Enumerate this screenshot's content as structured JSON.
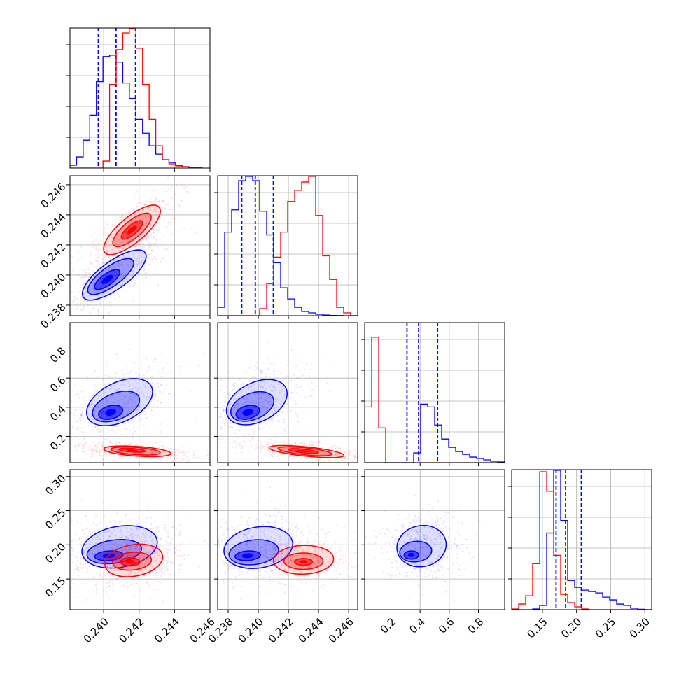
{
  "chart_data": {
    "type": "corner",
    "title": "",
    "parameters": [
      "",
      "",
      "",
      ""
    ],
    "colors": {
      "blue": "#0000ff",
      "red": "#ff0000",
      "grid": "#b0b0b0"
    },
    "grid": true,
    "axes": [
      {
        "range": [
          0.2381,
          0.246
        ],
        "ticks": [
          0.24,
          0.242,
          0.244,
          0.246
        ],
        "labels": [
          "0.240",
          "0.242",
          "0.244",
          "0.246"
        ]
      },
      {
        "range": [
          0.2373,
          0.2466
        ],
        "ticks": [
          0.238,
          0.24,
          0.242,
          0.244,
          0.246
        ],
        "labels": [
          "0.238",
          "0.240",
          "0.242",
          "0.244",
          "0.246"
        ]
      },
      {
        "range": [
          0.02,
          0.98
        ],
        "ticks": [
          0.2,
          0.4,
          0.6,
          0.8
        ],
        "labels": [
          "0.2",
          "0.4",
          "0.6",
          "0.8"
        ]
      },
      {
        "range": [
          0.105,
          0.31
        ],
        "ticks": [
          0.15,
          0.2,
          0.25,
          0.3
        ],
        "labels": [
          "0.15",
          "0.20",
          "0.25",
          "0.30"
        ]
      }
    ],
    "series": [
      {
        "color": "blue",
        "quantiles": [
          [
            0.2397,
            0.2407,
            0.2418
          ],
          [
            0.2389,
            0.2398,
            0.241
          ],
          [
            0.31,
            0.39,
            0.52
          ],
          [
            0.17,
            0.184,
            0.207
          ]
        ],
        "histograms": [
          {
            "edges": [
              0.2381,
              0.24555
            ],
            "counts": [
              2,
              8,
              20,
              38,
              62,
              80,
              81,
              76,
              61,
              50,
              35,
              25,
              16,
              10,
              6,
              4,
              2,
              1,
              0.5,
              0.3
            ]
          },
          {
            "edges": [
              0.2373,
              0.2466
            ],
            "counts": [
              6,
              60,
              76,
              97,
              100,
              97,
              75,
              58,
              38,
              20,
              12,
              6,
              3,
              2,
              1,
              0.4,
              0.2,
              0.1,
              0,
              0
            ]
          },
          {
            "edges": [
              0.02,
              0.98
            ],
            "counts": [
              0,
              0,
              0,
              0,
              0,
              0,
              0,
              7,
              42,
              40,
              27,
              17,
              11,
              8,
              6,
              4,
              3,
              2,
              1,
              0.5
            ]
          },
          {
            "edges": [
              0.105,
              0.31
            ],
            "counts": [
              0,
              0,
              0,
              0.5,
              3,
              55,
              100,
              64,
              21,
              16,
              14,
              13,
              12,
              9,
              7,
              4,
              3,
              1,
              0.3,
              0
            ]
          }
        ],
        "contours": {
          "1_0": [
            {
              "center": [
                0.2402,
                0.2397
              ],
              "sx": 0.00085,
              "sy": 0.00038,
              "angle": 36
            },
            {
              "center": [
                0.2404,
                0.2399
              ],
              "sx": 0.00155,
              "sy": 0.00065,
              "angle": 36
            },
            {
              "center": [
                0.2406,
                0.24
              ],
              "sx": 0.00215,
              "sy": 0.00092,
              "angle": 36
            }
          ],
          "2_0": [
            {
              "center": [
                0.2404,
                0.365
              ],
              "sx": 0.0007,
              "sy": 0.045,
              "angle": 14
            },
            {
              "center": [
                0.2407,
                0.405
              ],
              "sx": 0.0014,
              "sy": 0.09,
              "angle": 22
            },
            {
              "center": [
                0.2409,
                0.435
              ],
              "sx": 0.002,
              "sy": 0.135,
              "angle": 26
            }
          ],
          "2_1": [
            {
              "center": [
                0.2393,
                0.365
              ],
              "sx": 0.0008,
              "sy": 0.045,
              "angle": 14
            },
            {
              "center": [
                0.2396,
                0.405
              ],
              "sx": 0.0015,
              "sy": 0.09,
              "angle": 22
            },
            {
              "center": [
                0.2399,
                0.435
              ],
              "sx": 0.00215,
              "sy": 0.135,
              "angle": 26
            }
          ],
          "3_0": [
            {
              "center": [
                0.2403,
                0.184
              ],
              "sx": 0.0008,
              "sy": 0.007,
              "angle": 4
            },
            {
              "center": [
                0.2406,
                0.19
              ],
              "sx": 0.00155,
              "sy": 0.017,
              "angle": 8
            },
            {
              "center": [
                0.2409,
                0.197
              ],
              "sx": 0.00215,
              "sy": 0.03,
              "angle": 10
            }
          ],
          "3_1": [
            {
              "center": [
                0.2393,
                0.184
              ],
              "sx": 0.00085,
              "sy": 0.007,
              "angle": 4
            },
            {
              "center": [
                0.2397,
                0.189
              ],
              "sx": 0.00165,
              "sy": 0.018,
              "angle": 7
            },
            {
              "center": [
                0.24,
                0.196
              ],
              "sx": 0.0023,
              "sy": 0.03,
              "angle": 9
            }
          ],
          "3_2": [
            {
              "center": [
                0.34,
                0.185
              ],
              "sx": 0.05,
              "sy": 0.006,
              "angle": 0
            },
            {
              "center": [
                0.37,
                0.19
              ],
              "sx": 0.11,
              "sy": 0.015,
              "angle": 6
            },
            {
              "center": [
                0.41,
                0.198
              ],
              "sx": 0.17,
              "sy": 0.03,
              "angle": 12
            }
          ]
        }
      },
      {
        "color": "red",
        "quantiles": [],
        "histograms": [
          {
            "edges": [
              0.2381,
              0.24555
            ],
            "counts": [
              0,
              0,
              0,
              0,
              0,
              5,
              60,
              85,
              97,
              100,
              86,
              60,
              35,
              16,
              6,
              3,
              1.5,
              1,
              0.5,
              0.3
            ]
          },
          {
            "edges": [
              0.2373,
              0.2466
            ],
            "counts": [
              0,
              0,
              0,
              0,
              0,
              0,
              5,
              23,
              42,
              60,
              82,
              90,
              96,
              100,
              72,
              43,
              26,
              6,
              2,
              0
            ]
          },
          {
            "edges": [
              0.02,
              0.98
            ],
            "counts": [
              40,
              90,
              25,
              0,
              0,
              0,
              0,
              0,
              0,
              0,
              0,
              0,
              0,
              0,
              0,
              0,
              0,
              0,
              0,
              0
            ]
          },
          {
            "edges": [
              0.105,
              0.31
            ],
            "counts": [
              0.5,
              4,
              10,
              33,
              99,
              85,
              39,
              11,
              5,
              2,
              0.5,
              0,
              0,
              0,
              0,
              0,
              0,
              0,
              0,
              0
            ]
          }
        ],
        "contours": {
          "1_0": [
            {
              "center": [
                0.2416,
                0.243
              ],
              "sx": 0.00075,
              "sy": 0.00032,
              "angle": 40
            },
            {
              "center": [
                0.2416,
                0.243
              ],
              "sx": 0.00135,
              "sy": 0.00058,
              "angle": 40
            },
            {
              "center": [
                0.2416,
                0.243
              ],
              "sx": 0.002,
              "sy": 0.00085,
              "angle": 40
            }
          ],
          "2_0": [
            {
              "center": [
                0.2416,
                0.105
              ],
              "sx": 0.00075,
              "sy": 0.012,
              "angle": -4
            },
            {
              "center": [
                0.2418,
                0.1
              ],
              "sx": 0.0014,
              "sy": 0.025,
              "angle": -4
            },
            {
              "center": [
                0.2419,
                0.098
              ],
              "sx": 0.0019,
              "sy": 0.033,
              "angle": -4
            }
          ],
          "2_1": [
            {
              "center": [
                0.243,
                0.1
              ],
              "sx": 0.001,
              "sy": 0.012,
              "angle": -6
            },
            {
              "center": [
                0.2431,
                0.098
              ],
              "sx": 0.0018,
              "sy": 0.024,
              "angle": -6
            },
            {
              "center": [
                0.2432,
                0.096
              ],
              "sx": 0.0025,
              "sy": 0.032,
              "angle": -6
            }
          ],
          "3_0": [
            {
              "center": [
                0.2415,
                0.175
              ],
              "sx": 0.00055,
              "sy": 0.006,
              "angle": 0
            },
            {
              "center": [
                0.2416,
                0.176
              ],
              "sx": 0.0011,
              "sy": 0.013,
              "angle": 5
            },
            {
              "center": [
                0.2417,
                0.177
              ],
              "sx": 0.00165,
              "sy": 0.023,
              "angle": 10
            }
          ],
          "3_1": [
            {
              "center": [
                0.243,
                0.175
              ],
              "sx": 0.0006,
              "sy": 0.005,
              "angle": 0
            },
            {
              "center": [
                0.243,
                0.176
              ],
              "sx": 0.0013,
              "sy": 0.012,
              "angle": 0
            },
            {
              "center": [
                0.243,
                0.178
              ],
              "sx": 0.002,
              "sy": 0.021,
              "angle": 2
            }
          ],
          "3_2": []
        }
      }
    ]
  }
}
